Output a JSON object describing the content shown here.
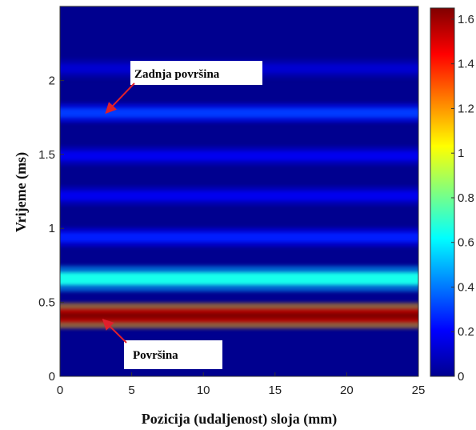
{
  "chart_data": {
    "type": "heatmap",
    "title": "",
    "xlabel": "Pozicija (udaljenost) sloja (mm)",
    "ylabel": "Vrijeme (ms)",
    "xlim": [
      0,
      25
    ],
    "ylim": [
      0,
      2.5
    ],
    "x_ticks": [
      0,
      5,
      10,
      15,
      20,
      25
    ],
    "y_ticks": [
      0,
      0.5,
      1,
      1.5,
      2
    ],
    "colorbar": {
      "range": [
        0,
        1.65
      ],
      "ticks": [
        0,
        0.2,
        0.4,
        0.6,
        0.8,
        1,
        1.2,
        1.4,
        1.6
      ],
      "colormap": "jet"
    },
    "bands": [
      {
        "time_ms": 0.41,
        "intensity": 1.55
      },
      {
        "time_ms": 0.66,
        "intensity": 0.65
      },
      {
        "time_ms": 0.94,
        "intensity": 0.25
      },
      {
        "time_ms": 1.22,
        "intensity": 0.18
      },
      {
        "time_ms": 1.49,
        "intensity": 0.18
      },
      {
        "time_ms": 1.78,
        "intensity": 0.3
      },
      {
        "time_ms": 2.08,
        "intensity": 0.13
      }
    ],
    "annotations": [
      {
        "text": "Zadnja površina",
        "target_x": 3.2,
        "target_y": 1.78
      },
      {
        "text": "Površina",
        "target_x": 3.0,
        "target_y": 0.4
      }
    ]
  },
  "colors": {
    "background": "#00008f",
    "annotation_arrow": "#e0202c"
  }
}
